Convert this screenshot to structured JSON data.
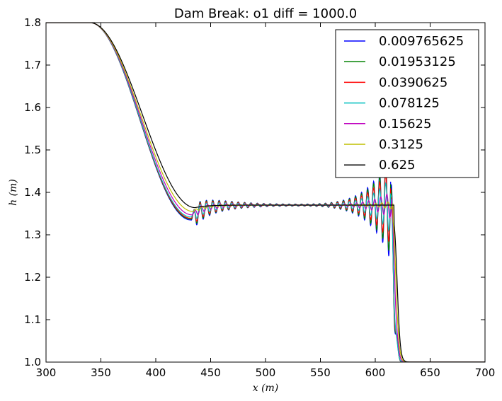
{
  "chart_data": {
    "type": "line",
    "title": "Dam Break: o1 diff = 1000.0",
    "xlabel": "x (m)",
    "ylabel": "h (m)",
    "xlim": [
      300,
      700
    ],
    "ylim": [
      1.0,
      1.8
    ],
    "x_ticks": [
      300,
      350,
      400,
      450,
      500,
      550,
      600,
      650,
      700
    ],
    "x_tick_labels": [
      "300",
      "350",
      "400",
      "450",
      "500",
      "550",
      "600",
      "650",
      "700"
    ],
    "y_ticks": [
      1.0,
      1.1,
      1.2,
      1.3,
      1.4,
      1.5,
      1.6,
      1.7,
      1.8
    ],
    "y_tick_labels": [
      "1.0",
      "1.1",
      "1.2",
      "1.3",
      "1.4",
      "1.5",
      "1.6",
      "1.7",
      "1.8"
    ],
    "grid": false,
    "legend_position": "top-right",
    "plateau": 1.37,
    "series": [
      {
        "name": "0.009765625",
        "color": "#0000ff",
        "dip": 1.335,
        "dip_x": 432,
        "left_osc": 0.031,
        "right_osc": 0.28,
        "shock_x": 615
      },
      {
        "name": "0.01953125",
        "color": "#008000",
        "dip": 1.337,
        "dip_x": 432,
        "left_osc": 0.028,
        "right_osc": 0.25,
        "shock_x": 615
      },
      {
        "name": "0.0390625",
        "color": "#ff0000",
        "dip": 1.339,
        "dip_x": 432,
        "left_osc": 0.024,
        "right_osc": 0.2,
        "shock_x": 615
      },
      {
        "name": "0.078125",
        "color": "#00bfbf",
        "dip": 1.342,
        "dip_x": 432,
        "left_osc": 0.018,
        "right_osc": 0.14,
        "shock_x": 615
      },
      {
        "name": "0.15625",
        "color": "#bf00bf",
        "dip": 1.347,
        "dip_x": 433,
        "left_osc": 0.011,
        "right_osc": 0.07,
        "shock_x": 616
      },
      {
        "name": "0.3125",
        "color": "#bfbf00",
        "dip": 1.355,
        "dip_x": 434,
        "left_osc": 0.004,
        "right_osc": 0.02,
        "shock_x": 617
      },
      {
        "name": "0.625",
        "color": "#000000",
        "dip": 1.364,
        "dip_x": 436,
        "left_osc": 0.0,
        "right_osc": 0.0,
        "shock_x": 618
      }
    ]
  }
}
